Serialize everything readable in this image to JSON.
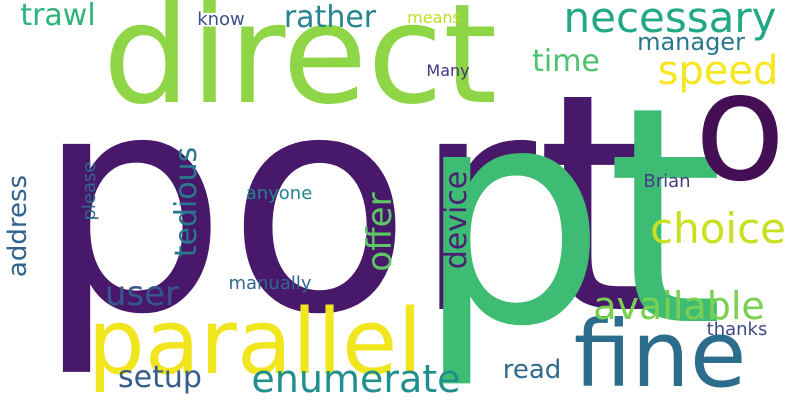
{
  "palette": {
    "indigo": "#46206e",
    "purple": "#440f54",
    "green": "#42bf73",
    "lime": "#8fd646",
    "yellow": "#f0e321",
    "lightgreen": "#7cd250",
    "teal": "#238c8c",
    "cyan": "#21918c",
    "navy": "#3a538b",
    "blue": "#2d6c8e",
    "slate": "#355f8d",
    "midgreen": "#37b778",
    "gold": "#dfe318",
    "chartreuse": "#c2df23"
  },
  "words": [
    {
      "text": "port",
      "color": "#48196b"
    },
    {
      "text": "direct",
      "color": "#8fd646"
    },
    {
      "text": "pt",
      "color": "#3fbc73"
    },
    {
      "text": "o",
      "color": "#440f54"
    },
    {
      "text": "parallel",
      "color": "#f1e51d"
    },
    {
      "text": "fine",
      "color": "#2c6d8e"
    },
    {
      "text": "necessary",
      "color": "#22a884"
    },
    {
      "text": "speed",
      "color": "#f6e620"
    },
    {
      "text": "choice",
      "color": "#c8e020"
    },
    {
      "text": "available",
      "color": "#7ad151"
    },
    {
      "text": "enumerate",
      "color": "#218f8d"
    },
    {
      "text": "trawl",
      "color": "#2eb37c"
    },
    {
      "text": "rather",
      "color": "#25858e"
    },
    {
      "text": "manager",
      "color": "#2a788e"
    },
    {
      "text": "time",
      "color": "#4cc26c"
    },
    {
      "text": "know",
      "color": "#3b528b"
    },
    {
      "text": "means",
      "color": "#bddf26"
    },
    {
      "text": "Many",
      "color": "#46327e"
    },
    {
      "text": "Brian",
      "color": "#433e85"
    },
    {
      "text": "anyone",
      "color": "#26828e"
    },
    {
      "text": "user",
      "color": "#39568c"
    },
    {
      "text": "setup",
      "color": "#365c8d"
    },
    {
      "text": "read",
      "color": "#2f6c8e"
    },
    {
      "text": "thanks",
      "color": "#3e4989"
    },
    {
      "text": "manually",
      "color": "#31688e"
    },
    {
      "text": "tedious",
      "color": "#2a788e"
    },
    {
      "text": "offer",
      "color": "#5ec962"
    },
    {
      "text": "device",
      "color": "#482173"
    },
    {
      "text": "address",
      "color": "#33638d"
    },
    {
      "text": "please",
      "color": "#31688e"
    }
  ]
}
